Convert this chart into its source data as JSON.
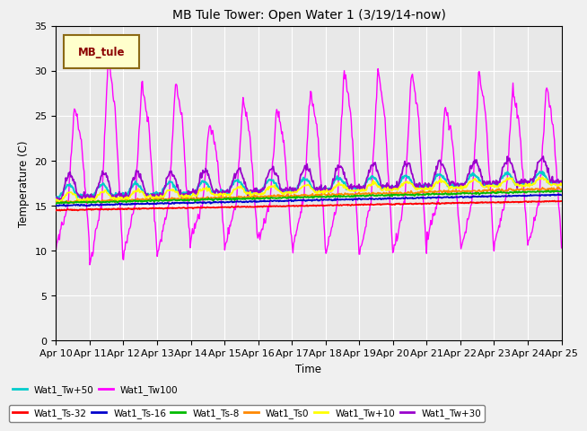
{
  "title": "MB Tule Tower: Open Water 1 (3/19/14-now)",
  "xlabel": "Time",
  "ylabel": "Temperature (C)",
  "ylim": [
    0,
    35
  ],
  "yticks": [
    0,
    5,
    10,
    15,
    20,
    25,
    30,
    35
  ],
  "bg_color": "#e8e8e8",
  "legend_label": "MB_tule",
  "legend_bg": "#ffffcc",
  "legend_border": "#8b6914",
  "series_colors": {
    "Wat1_Ts-32": "#ff0000",
    "Wat1_Ts-16": "#0000cc",
    "Wat1_Ts-8": "#00bb00",
    "Wat1_Ts0": "#ff8800",
    "Wat1_Tw+10": "#ffff00",
    "Wat1_Tw+30": "#9900cc",
    "Wat1_Tw+50": "#00cccc",
    "Wat1_Tw100": "#ff00ff"
  },
  "xtick_labels": [
    "Apr 10",
    "Apr 11",
    "Apr 12",
    "Apr 13",
    "Apr 14",
    "Apr 15",
    "Apr 16",
    "Apr 17",
    "Apr 18",
    "Apr 19",
    "Apr 20",
    "Apr 21",
    "Apr 22",
    "Apr 23",
    "Apr 24",
    "Apr 25"
  ]
}
